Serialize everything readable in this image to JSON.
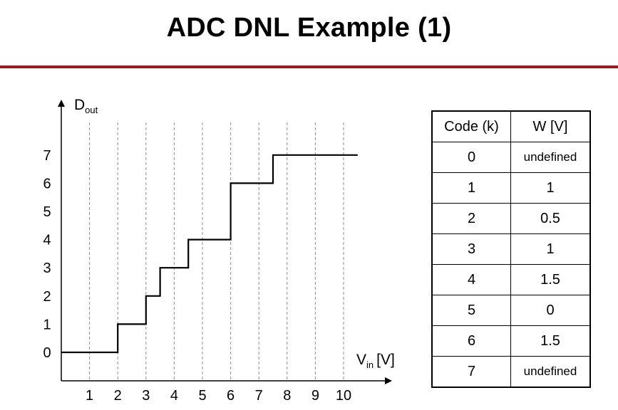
{
  "slide": {
    "title": "ADC DNL Example (1)",
    "rule_color": "#9a1b1e"
  },
  "chart_data": {
    "type": "line",
    "subtype": "staircase",
    "x_axis": {
      "label": "V",
      "label_subscript": "in",
      "label_suffix": "[V]",
      "ticks": [
        1,
        2,
        3,
        4,
        5,
        6,
        7,
        8,
        9,
        10
      ],
      "range": [
        0,
        10.5
      ]
    },
    "y_axis": {
      "label": "D",
      "label_subscript": "out",
      "ticks": [
        0,
        1,
        2,
        3,
        4,
        5,
        6,
        7
      ],
      "range": [
        0,
        8
      ]
    },
    "grid": {
      "vertical": true,
      "style": "dashed",
      "positions": [
        1,
        2,
        3,
        4,
        5,
        6,
        7,
        8,
        9,
        10
      ]
    },
    "series": [
      {
        "x": [
          0,
          2,
          2,
          3,
          3,
          3.5,
          3.5,
          4.5,
          4.5,
          6,
          6,
          7.5,
          7.5,
          10.5
        ],
        "y": [
          0,
          0,
          1,
          1,
          2,
          2,
          3,
          3,
          4,
          4,
          6,
          6,
          7,
          7
        ]
      }
    ]
  },
  "table": {
    "headers": [
      "Code (k)",
      "W [V]"
    ],
    "rows": [
      [
        "0",
        "undefined"
      ],
      [
        "1",
        "1"
      ],
      [
        "2",
        "0.5"
      ],
      [
        "3",
        "1"
      ],
      [
        "4",
        "1.5"
      ],
      [
        "5",
        "0"
      ],
      [
        "6",
        "1.5"
      ],
      [
        "7",
        "undefined"
      ]
    ]
  }
}
